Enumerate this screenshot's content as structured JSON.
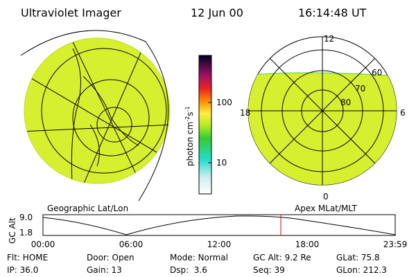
{
  "header": {
    "instrument": "Ultraviolet Imager",
    "date": "12 Jun 00",
    "time": "16:14:48 UT"
  },
  "colorbar": {
    "label": "photon cm",
    "exp1": "-2",
    "unit2": "s",
    "exp2": "-1",
    "ticks": [
      "100",
      "10"
    ]
  },
  "maps": {
    "left_label": "Geographic Lat/Lon",
    "right_label": "Apex MLat/MLT",
    "polar_labels": {
      "top": "12",
      "bottom": "0",
      "left": "18",
      "right": "6",
      "lat80": "80",
      "lat70": "70",
      "lat60": "60"
    }
  },
  "orbit_plot": {
    "y_label": "GC Alt",
    "y_ticks": [
      "9.0",
      "1.8"
    ],
    "x_ticks": [
      "00:00",
      "06:00",
      "12:00",
      "18:00",
      "23:59"
    ]
  },
  "status": {
    "rows": [
      [
        "Flt: HOME",
        "Door: Open",
        "Mode: Normal",
        "GC Alt: 9.2 Re",
        "GLat: 75.8"
      ],
      [
        "IP: 36.0",
        "Gain: 13",
        "Dsp:  3.6",
        "Seq: 39",
        "GLon: 212.3"
      ]
    ]
  }
}
